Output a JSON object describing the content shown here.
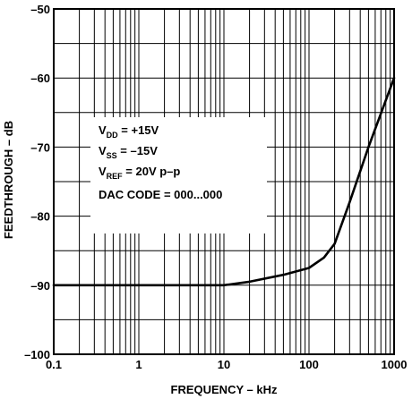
{
  "chart_data": {
    "type": "line",
    "title": "",
    "xlabel": "FREQUENCY – kHz",
    "ylabel": "FEEDTHROUGH – dB",
    "x_scale": "log",
    "xlim": [
      0.1,
      1000
    ],
    "ylim": [
      -100,
      -50
    ],
    "grid": true,
    "x_ticks": [
      {
        "value": 0.1,
        "label": "0.1"
      },
      {
        "value": 1,
        "label": "1"
      },
      {
        "value": 10,
        "label": "10"
      },
      {
        "value": 100,
        "label": "100"
      },
      {
        "value": 1000,
        "label": "1000"
      }
    ],
    "y_ticks": [
      {
        "value": -50,
        "label": "–50"
      },
      {
        "value": -60,
        "label": "–60"
      },
      {
        "value": -70,
        "label": "–70"
      },
      {
        "value": -80,
        "label": "–80"
      },
      {
        "value": -90,
        "label": "–90"
      },
      {
        "value": -100,
        "label": "–100"
      }
    ],
    "series": [
      {
        "x": [
          0.1,
          1,
          10,
          20,
          50,
          100,
          150,
          200,
          300,
          500,
          1000
        ],
        "y": [
          -90,
          -90,
          -90,
          -89.5,
          -88.5,
          -87.5,
          -86,
          -84,
          -78,
          -70,
          -60
        ]
      }
    ],
    "annotations": [
      {
        "main": "V",
        "sub": "DD",
        "rest": " = +15V"
      },
      {
        "main": "V",
        "sub": "SS",
        "rest": " = –15V"
      },
      {
        "main": "V",
        "sub": "REF",
        "rest": " = 20V p–p"
      },
      {
        "main": "DAC CODE = 000...000",
        "sub": "",
        "rest": ""
      }
    ]
  }
}
